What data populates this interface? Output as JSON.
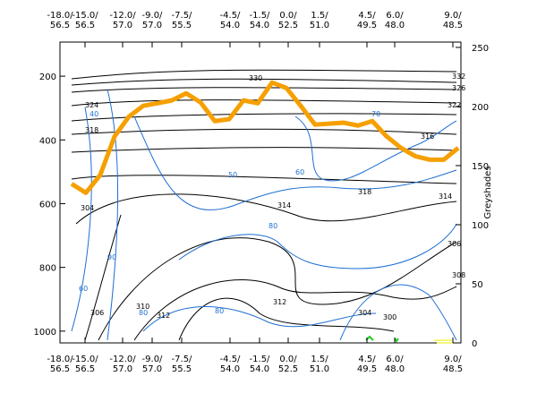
{
  "chart_data": {
    "type": "line",
    "y_label": "Greyshades",
    "x_ticks": [
      [
        "-18.0/",
        "56.5"
      ],
      [
        "-15.0/",
        "56.5"
      ],
      [
        "-12.0/",
        "57.0"
      ],
      [
        "-9.0/",
        "57.0"
      ],
      [
        "-7.5/",
        "55.5"
      ],
      [
        "-4.5/",
        "54.0"
      ],
      [
        "-1.5/",
        "54.0"
      ],
      [
        "0.0/",
        "52.5"
      ],
      [
        "1.5/",
        "51.0"
      ],
      [
        "4.5/",
        "49.5"
      ],
      [
        "6.0/",
        "48.0"
      ],
      [
        "9.0/",
        "48.5"
      ]
    ],
    "ylim": [
      1037,
      93
    ],
    "yticks": [
      200,
      400,
      600,
      800,
      1000
    ],
    "y2lim": [
      0,
      254.5
    ],
    "y2ticks": [
      0,
      50,
      100,
      150,
      200,
      250
    ],
    "series": [
      {
        "color": "#f5a000",
        "values": [
          538,
          566,
          510,
          389,
          327,
          293,
          285,
          276,
          254,
          282,
          341,
          335,
          276,
          285,
          220,
          237,
          293,
          352,
          349,
          346,
          355,
          341,
          389,
          425,
          451,
          462,
          462,
          425
        ]
      }
    ],
    "contour_labels": {
      "black": [
        330,
        332,
        326,
        324,
        318,
        316,
        322,
        314,
        312,
        312,
        310,
        308,
        306,
        304,
        304,
        300,
        306,
        314,
        318
      ],
      "blue": [
        80,
        80,
        80,
        50,
        70,
        60,
        40,
        90,
        60
      ]
    }
  }
}
